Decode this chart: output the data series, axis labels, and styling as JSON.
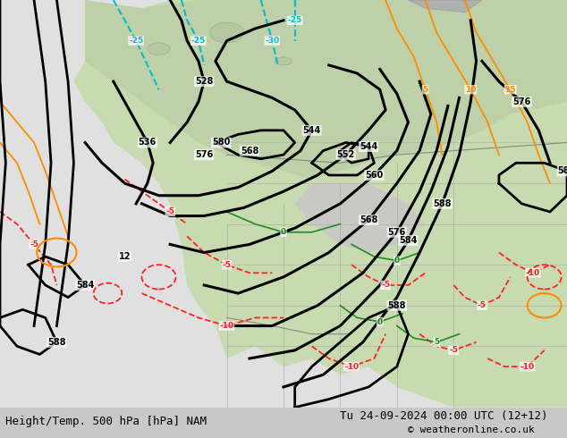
{
  "title_left": "Height/Temp. 500 hPa [hPa] NAM",
  "title_right": "Tu 24-09-2024 00:00 UTC (12+12)",
  "copyright": "© weatheronline.co.uk",
  "bg_color": "#d0d0d0",
  "land_color": "#c8e6b0",
  "ocean_color": "#e8e8e8",
  "height_contour_color": "#000000",
  "temp_warm_color": "#ff8c00",
  "temp_cold_color": "#00bcd4",
  "temp_neg_color": "#ff3333",
  "figsize": [
    6.34,
    4.9
  ],
  "dpi": 100
}
